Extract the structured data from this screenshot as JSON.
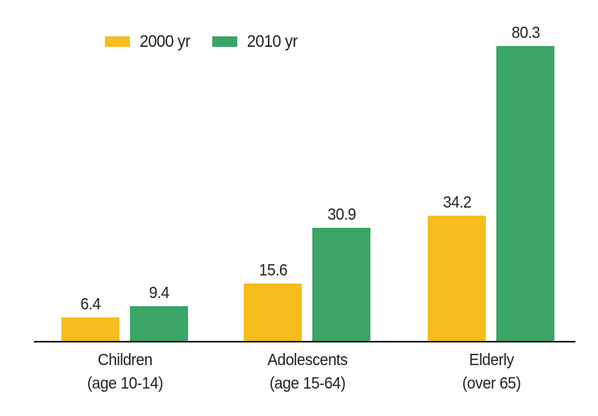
{
  "legend": {
    "items": [
      {
        "label": "2000 yr",
        "color": "#F5BD1E"
      },
      {
        "label": "2010 yr",
        "color": "#3BA567"
      }
    ]
  },
  "colors": {
    "series_2000": "#F5BD1E",
    "series_2010": "#3BA567",
    "axis": "#1a1a1a",
    "text": "#231f20",
    "background": "#ffffff"
  },
  "chart_data": {
    "type": "bar",
    "categories": [
      "Children (age 10-14)",
      "Adolescents (age 15-64)",
      "Elderly (over 65)"
    ],
    "category_lines": [
      {
        "line1": "Children",
        "line2": "(age 10-14)"
      },
      {
        "line1": "Adolescents",
        "line2": "(age 15-64)"
      },
      {
        "line1": "Elderly",
        "line2": "(over 65)"
      }
    ],
    "series": [
      {
        "name": "2000 yr",
        "color": "#F5BD1E",
        "values": [
          6.4,
          15.6,
          34.2
        ]
      },
      {
        "name": "2010 yr",
        "color": "#3BA567",
        "values": [
          9.4,
          30.9,
          80.3
        ]
      }
    ],
    "title": "",
    "xlabel": "",
    "ylabel": "",
    "ylim": [
      0,
      85
    ],
    "grid": false,
    "value_labels": true,
    "legend_position": "top-left",
    "axes_shown": "x-baseline-only"
  }
}
